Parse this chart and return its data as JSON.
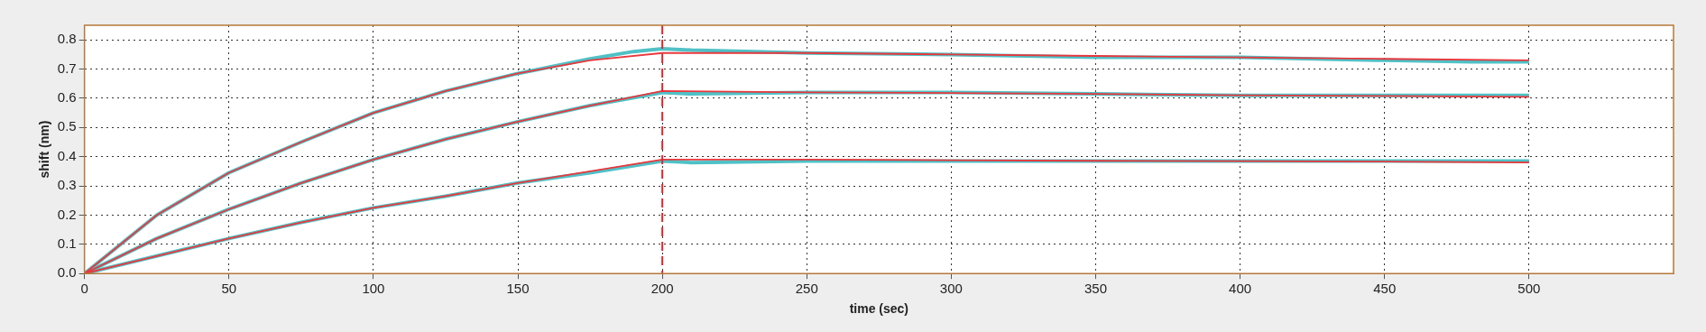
{
  "chart_data": {
    "type": "line",
    "xlabel": "time (sec)",
    "ylabel": "shift (nm)",
    "xlim": [
      0,
      550
    ],
    "xticks": [
      0,
      50,
      100,
      150,
      200,
      250,
      300,
      350,
      400,
      450,
      500
    ],
    "ylim": [
      0,
      0.85
    ],
    "yticks": [
      {
        "value": 0,
        "label": "0.0"
      },
      0.1,
      0.2,
      0.3,
      0.4,
      0.5,
      0.6,
      0.7,
      0.8
    ],
    "grid": true,
    "legend": false,
    "marker": "none",
    "line_style": "solid",
    "ref_lines": [
      {
        "axis": "x",
        "value": 200,
        "color": "#e8242c",
        "line_style": "dashed"
      }
    ],
    "series": [
      {
        "color": "#4fc1c6",
        "x": [
          0,
          25,
          50,
          75,
          100,
          125,
          150,
          175,
          190,
          200,
          210,
          250,
          300,
          350,
          400,
          450,
          480,
          500
        ],
        "values": [
          0,
          0.2,
          0.345,
          0.45,
          0.55,
          0.625,
          0.685,
          0.735,
          0.76,
          0.77,
          0.765,
          0.755,
          0.75,
          0.74,
          0.74,
          0.73,
          0.725,
          0.725
        ]
      },
      {
        "color": "#4fc1c6",
        "x": [
          0,
          25,
          50,
          75,
          100,
          125,
          150,
          175,
          200,
          210,
          250,
          300,
          350,
          400,
          450,
          500
        ],
        "values": [
          0,
          0.12,
          0.22,
          0.31,
          0.39,
          0.46,
          0.52,
          0.575,
          0.62,
          0.615,
          0.62,
          0.62,
          0.615,
          0.61,
          0.61,
          0.61
        ]
      },
      {
        "color": "#4fc1c6",
        "x": [
          0,
          25,
          50,
          75,
          100,
          125,
          150,
          175,
          200,
          210,
          250,
          300,
          350,
          400,
          450,
          500
        ],
        "values": [
          0,
          0.06,
          0.12,
          0.175,
          0.225,
          0.265,
          0.31,
          0.345,
          0.385,
          0.38,
          0.385,
          0.385,
          0.385,
          0.385,
          0.385,
          0.385
        ]
      },
      {
        "color": "#e8383d",
        "x": [
          0,
          25,
          50,
          75,
          100,
          125,
          150,
          175,
          200,
          250,
          300,
          350,
          400,
          450,
          500
        ],
        "values": [
          0,
          0.2,
          0.345,
          0.45,
          0.55,
          0.625,
          0.685,
          0.73,
          0.755,
          0.755,
          0.75,
          0.745,
          0.74,
          0.735,
          0.73
        ]
      },
      {
        "color": "#e8383d",
        "x": [
          0,
          25,
          50,
          75,
          100,
          125,
          150,
          175,
          200,
          250,
          300,
          350,
          400,
          450,
          500
        ],
        "values": [
          0,
          0.12,
          0.22,
          0.31,
          0.39,
          0.46,
          0.52,
          0.575,
          0.625,
          0.62,
          0.618,
          0.615,
          0.61,
          0.608,
          0.605
        ]
      },
      {
        "color": "#e8383d",
        "x": [
          0,
          25,
          50,
          75,
          100,
          125,
          150,
          175,
          200,
          250,
          300,
          350,
          400,
          450,
          500
        ],
        "values": [
          0,
          0.06,
          0.12,
          0.175,
          0.225,
          0.265,
          0.31,
          0.35,
          0.39,
          0.39,
          0.388,
          0.386,
          0.385,
          0.383,
          0.38
        ]
      }
    ]
  }
}
